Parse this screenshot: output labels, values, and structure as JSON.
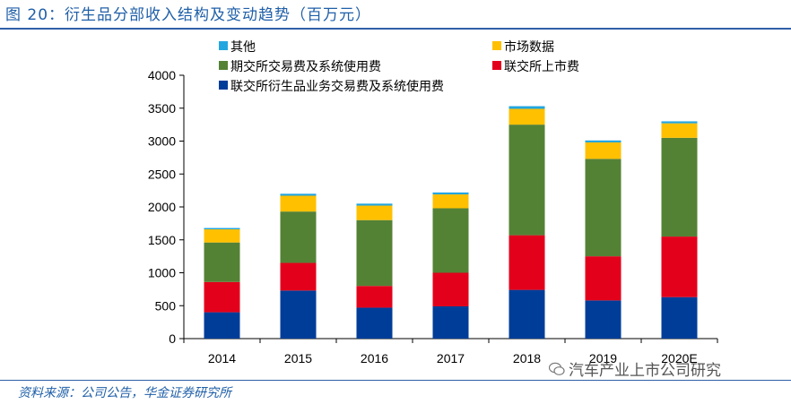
{
  "header": {
    "title": "图 20：衍生品分部收入结构及变动趋势（百万元）"
  },
  "footer": {
    "source": "资料来源：公司公告，华金证券研究所",
    "watermark": "汽车产业上市公司研究"
  },
  "chart_data": {
    "type": "bar",
    "stacked": true,
    "categories": [
      "2014",
      "2015",
      "2016",
      "2017",
      "2018",
      "2019",
      "2020E"
    ],
    "ylim": [
      0,
      4000
    ],
    "yticks": [
      0,
      500,
      1000,
      1500,
      2000,
      2500,
      3000,
      3500,
      4000
    ],
    "grid": false,
    "legend_position": "top",
    "series": [
      {
        "name": "联交所衍生品业务交易费及系统使用费",
        "color": "#003d99",
        "values": [
          400,
          730,
          470,
          490,
          740,
          580,
          630
        ]
      },
      {
        "name": "联交所上市费",
        "color": "#e3001b",
        "values": [
          460,
          420,
          330,
          510,
          830,
          670,
          920
        ]
      },
      {
        "name": "期交所交易费及系统使用费",
        "color": "#548235",
        "values": [
          600,
          780,
          1000,
          980,
          1680,
          1480,
          1500
        ]
      },
      {
        "name": "市场数据",
        "color": "#ffc000",
        "values": [
          200,
          240,
          220,
          210,
          240,
          250,
          220
        ]
      },
      {
        "name": "其他",
        "color": "#23a6e0",
        "values": [
          20,
          30,
          30,
          30,
          40,
          30,
          30
        ]
      }
    ],
    "legend_order": [
      "其他",
      "市场数据",
      "期交所交易费及系统使用费",
      "联交所上市费",
      "联交所衍生品业务交易费及系统使用费"
    ]
  }
}
